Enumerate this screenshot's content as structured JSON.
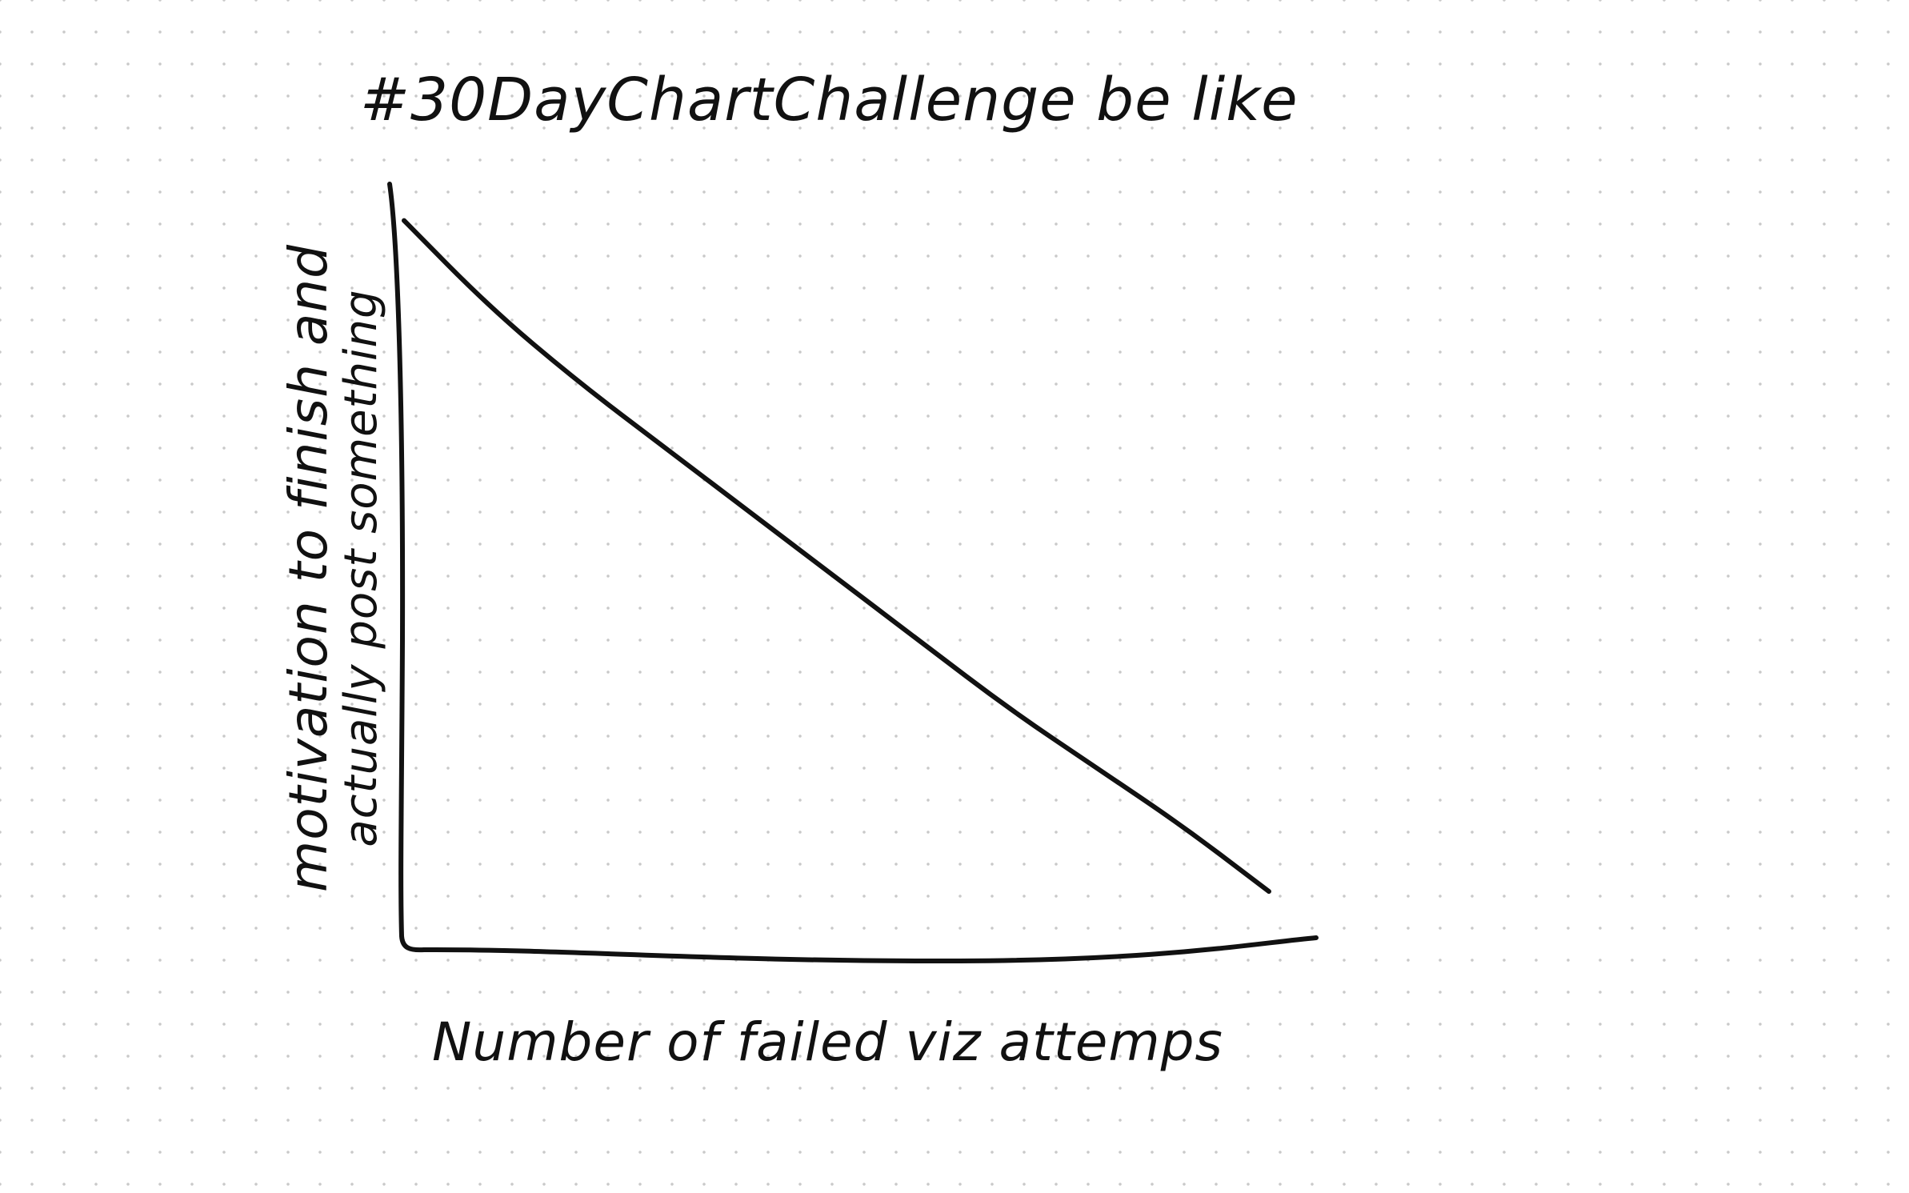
{
  "chart_data": {
    "type": "line",
    "title": "#30DayChartChallenge be like",
    "xlabel": "Number of failed viz attemps",
    "ylabel": [
      "motivation to finish and",
      "actually post something"
    ],
    "x": [
      0,
      1,
      2,
      3,
      4,
      5,
      6,
      7,
      8,
      9,
      10
    ],
    "series": [
      {
        "values": [
          100,
          88,
          78,
          69,
          60,
          51,
          42,
          33,
          25,
          17,
          8
        ]
      }
    ],
    "xlim": [
      0,
      10.5
    ],
    "ylim": [
      0,
      105
    ],
    "grid": false,
    "ticks": false,
    "colors": {
      "ink": "#111111",
      "background": "#ffffff",
      "dot_grid": "#c9c9c9"
    }
  }
}
